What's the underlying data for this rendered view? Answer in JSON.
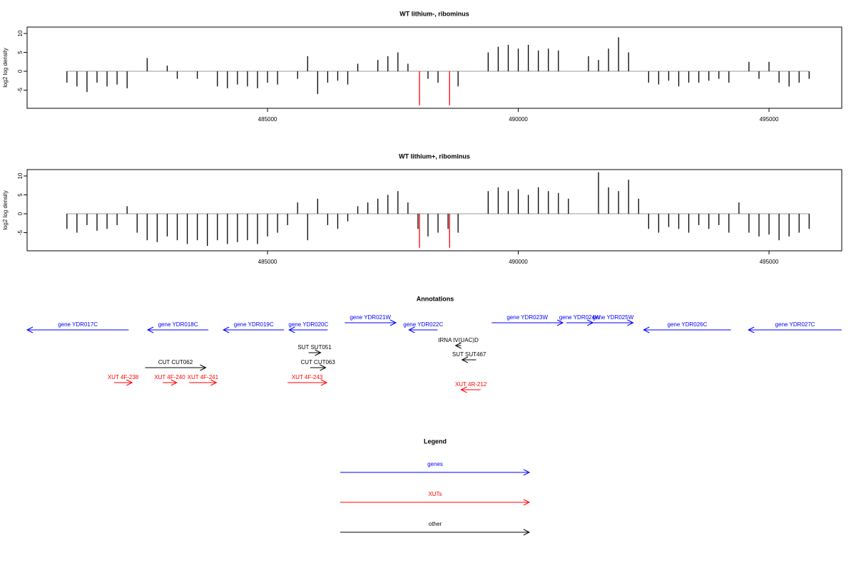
{
  "chart_data": [
    {
      "type": "bar",
      "title": "WT lithium-, ribominus",
      "y_label": "log2 log density",
      "xlim": [
        480206,
        496450
      ],
      "xticks": [
        485000,
        490000,
        495000
      ],
      "ylim": [
        -9.8,
        11.7
      ],
      "yticks": [
        -5,
        0,
        5,
        10
      ],
      "series": [
        {
          "color": "#000000",
          "x": [
            481000,
            481200,
            481400,
            481600,
            481800,
            482000,
            482200,
            482400,
            482600,
            482800,
            483000,
            483200,
            483400,
            483600,
            483800,
            484000,
            484200,
            484400,
            484600,
            484800,
            485000,
            485200,
            485400,
            485600,
            485800,
            486000,
            486200,
            486400,
            486600,
            486800,
            487000,
            487200,
            487400,
            487600,
            487800,
            488000,
            488200,
            488400,
            488600,
            488800,
            489000,
            489200,
            489400,
            489600,
            489800,
            490000,
            490200,
            490400,
            490600,
            490800,
            491000,
            491200,
            491400,
            491600,
            491800,
            492000,
            492200,
            492400,
            492600,
            492800,
            493000,
            493200,
            493400,
            493600,
            493800,
            494000,
            494200,
            494400,
            494600,
            494800,
            495000,
            495200,
            495400,
            495600,
            495800
          ],
          "values": [
            -3,
            -4,
            -5.5,
            -3,
            -4,
            -3.5,
            -4.5,
            0,
            3.5,
            0,
            1.5,
            -2,
            0,
            -2,
            0,
            -4,
            -4.5,
            -3.5,
            -4,
            -4.5,
            -3,
            -3.5,
            0,
            -2,
            4,
            -6,
            -3,
            -2.5,
            -3.5,
            2,
            0,
            3,
            4,
            5,
            2,
            0,
            -2,
            -3,
            0,
            -4,
            0,
            0,
            5,
            6.5,
            7,
            6,
            7,
            5.5,
            6,
            5.5,
            0,
            0,
            4,
            3,
            6,
            9,
            5,
            0,
            -3,
            -3.5,
            -2.5,
            -4,
            -3,
            -3,
            -2.5,
            -2,
            -3,
            0,
            2.5,
            -2,
            2.5,
            -3,
            -4,
            -3,
            -2
          ]
        },
        {
          "color": "#ff0000",
          "x": [
            488030,
            488630
          ],
          "values": [
            -9,
            -9
          ]
        }
      ]
    },
    {
      "type": "bar",
      "title": "WT lithium+, ribominus",
      "y_label": "log2 log density",
      "xlim": [
        480206,
        496450
      ],
      "xticks": [
        485000,
        490000,
        495000
      ],
      "ylim": [
        -9.8,
        11.7
      ],
      "yticks": [
        -5,
        0,
        5,
        10
      ],
      "series": [
        {
          "color": "#000000",
          "x": [
            481000,
            481200,
            481400,
            481600,
            481800,
            482000,
            482200,
            482400,
            482600,
            482800,
            483000,
            483200,
            483400,
            483600,
            483800,
            484000,
            484200,
            484400,
            484600,
            484800,
            485000,
            485200,
            485400,
            485600,
            485800,
            486000,
            486200,
            486400,
            486600,
            486800,
            487000,
            487200,
            487400,
            487600,
            487800,
            488000,
            488200,
            488400,
            488600,
            488800,
            489000,
            489200,
            489400,
            489600,
            489800,
            490000,
            490200,
            490400,
            490600,
            490800,
            491000,
            491200,
            491400,
            491600,
            491800,
            492000,
            492200,
            492400,
            492600,
            492800,
            493000,
            493200,
            493400,
            493600,
            493800,
            494000,
            494200,
            494400,
            494600,
            494800,
            495000,
            495200,
            495400,
            495600,
            495800
          ],
          "values": [
            -4,
            -5,
            -3,
            -4.5,
            -4,
            -3,
            2,
            -5,
            -7,
            -7.5,
            -6,
            -7,
            -8,
            -7,
            -8.5,
            -7,
            -8,
            -7.5,
            -7,
            -8,
            -6,
            -5,
            -3,
            3,
            -7,
            4,
            -3,
            -4,
            -2,
            2,
            3,
            4,
            5,
            6,
            3,
            -4,
            -6,
            -5,
            -4,
            -5,
            0,
            0,
            6,
            7,
            6,
            6.5,
            5,
            7,
            6,
            5.5,
            4,
            0,
            0,
            11,
            7,
            6,
            9,
            4,
            -4,
            -5,
            -3.5,
            -4,
            -5,
            -3,
            -4,
            -3,
            -5,
            3,
            -5,
            -6,
            -5.5,
            -7,
            -6,
            -5,
            -4
          ]
        },
        {
          "color": "#ff0000",
          "x": [
            488030,
            488630
          ],
          "values": [
            -9,
            -9
          ]
        }
      ]
    },
    {
      "type": "annotation",
      "title": "Annotations",
      "xlim": [
        480206,
        496450
      ],
      "features": [
        {
          "label": "gene YDR017C",
          "start": 480206,
          "end": 482230,
          "strand": "-",
          "color": "#0000ff"
        },
        {
          "label": "gene YDR018C",
          "start": 482610,
          "end": 483820,
          "strand": "-",
          "color": "#0000ff"
        },
        {
          "label": "gene YDR019C",
          "start": 484120,
          "end": 485330,
          "strand": "-",
          "color": "#0000ff"
        },
        {
          "label": "gene YDR020C",
          "start": 485430,
          "end": 486200,
          "strand": "-",
          "color": "#0000ff"
        },
        {
          "label": "gene YDR021W",
          "start": 486540,
          "end": 487560,
          "strand": "+",
          "color": "#0000ff"
        },
        {
          "label": "gene YDR022C",
          "start": 487820,
          "end": 488390,
          "strand": "-",
          "color": "#0000ff"
        },
        {
          "label": "gene YDR023W",
          "start": 489470,
          "end": 490890,
          "strand": "+",
          "color": "#0000ff"
        },
        {
          "label": "gene YDR024W",
          "start": 490960,
          "end": 491490,
          "strand": "+",
          "color": "#0000ff"
        },
        {
          "label": "gene YDR025W",
          "start": 491490,
          "end": 492290,
          "strand": "+",
          "color": "#0000ff"
        },
        {
          "label": "gene YDR026C",
          "start": 492500,
          "end": 494240,
          "strand": "-",
          "color": "#0000ff"
        },
        {
          "label": "gene YDR027C",
          "start": 494590,
          "end": 496450,
          "strand": "-",
          "color": "#0000ff"
        },
        {
          "label": "SUT SUT051",
          "start": 485820,
          "end": 486060,
          "strand": "+",
          "color": "#000000"
        },
        {
          "label": "CUT CUT062",
          "start": 482560,
          "end": 483770,
          "strand": "+",
          "color": "#000000"
        },
        {
          "label": "CUT CUT063",
          "start": 485850,
          "end": 486160,
          "strand": "+",
          "color": "#000000"
        },
        {
          "label": "tRNA tV(UAC)D",
          "start": 488750,
          "end": 488860,
          "strand": "-",
          "color": "#000000"
        },
        {
          "label": "SUT SUT467",
          "start": 488880,
          "end": 489160,
          "strand": "-",
          "color": "#000000"
        },
        {
          "label": "XUT 4F-238",
          "start": 481940,
          "end": 482300,
          "strand": "+",
          "color": "#ff0000"
        },
        {
          "label": "XUT 4F-240",
          "start": 482910,
          "end": 483190,
          "strand": "+",
          "color": "#ff0000"
        },
        {
          "label": "XUT 4F-241",
          "start": 483440,
          "end": 483980,
          "strand": "+",
          "color": "#ff0000"
        },
        {
          "label": "XUT 4F-243",
          "start": 485400,
          "end": 486180,
          "strand": "+",
          "color": "#ff0000"
        },
        {
          "label": "XUT 4R-212",
          "start": 488860,
          "end": 489250,
          "strand": "-",
          "color": "#ff0000"
        }
      ],
      "legend": {
        "title": "Legend",
        "entries": [
          {
            "label": "genes",
            "color": "#0000ff"
          },
          {
            "label": "XUTs",
            "color": "#ff0000"
          },
          {
            "label": "other",
            "color": "#000000"
          }
        ]
      }
    }
  ]
}
